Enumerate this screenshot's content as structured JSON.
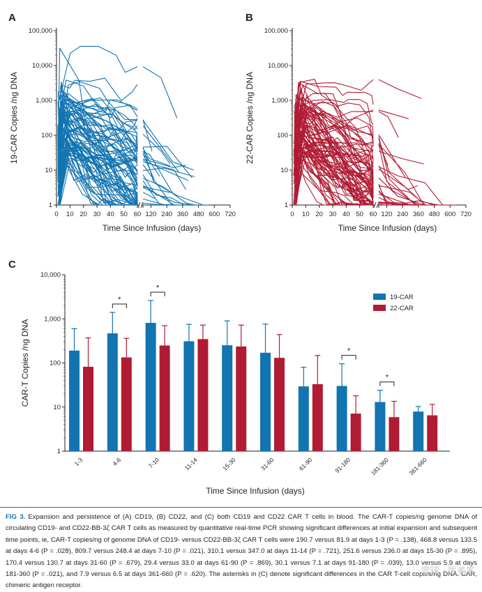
{
  "colors": {
    "cd19": "#1274b0",
    "cd22": "#b01c34",
    "axis": "#231f20"
  },
  "chart_data": [
    {
      "type": "line",
      "panel": "A",
      "ylabel": "19-CAR Copies /ng DNA",
      "xlabel": "Time Since Infusion (days)",
      "yscale": "log",
      "ylim": [
        1,
        100000
      ],
      "ytick_labels": [
        "1",
        "10",
        "100",
        "1,000",
        "10,000",
        "100,000"
      ],
      "x_ticks_left": [
        "0",
        "10",
        "20",
        "30",
        "40",
        "50",
        "60"
      ],
      "x_ticks_right": [
        "120",
        "240",
        "360",
        "480",
        "600",
        "720"
      ],
      "break_label": "60",
      "n_patient_traces": 90
    },
    {
      "type": "line",
      "panel": "B",
      "ylabel": "22-CAR Copies /ng DNA",
      "xlabel": "Time Since Infusion (days)",
      "yscale": "log",
      "ylim": [
        1,
        100000
      ],
      "ytick_labels": [
        "1",
        "10",
        "100",
        "1,000",
        "10,000",
        "100,000"
      ],
      "x_ticks_left": [
        "0",
        "10",
        "20",
        "30",
        "40",
        "50",
        "60"
      ],
      "x_ticks_right": [
        "120",
        "240",
        "360",
        "480",
        "600",
        "720"
      ],
      "break_label": "60",
      "n_patient_traces": 90
    },
    {
      "type": "bar",
      "panel": "C",
      "ylabel": "CAR-T Copies /ng DNA",
      "xlabel": "Time Since Infusion (days)",
      "yscale": "log",
      "ylim": [
        1,
        10000
      ],
      "ytick_labels": [
        "1",
        "10",
        "100",
        "1,000",
        "10,000"
      ],
      "categories": [
        "1-3",
        "4-6",
        "7-10",
        "11-14",
        "15-30",
        "31-60",
        "61-90",
        "91-180",
        "181-360",
        "361-660"
      ],
      "series": [
        {
          "name": "19-CAR",
          "values": [
            190.7,
            468.8,
            809.7,
            310.1,
            251.6,
            170.4,
            29.4,
            30.1,
            13.0,
            7.9
          ],
          "error_upper": [
            600,
            1400,
            2600,
            750,
            900,
            760,
            80,
            96,
            24,
            10.3
          ]
        },
        {
          "name": "22-CAR",
          "values": [
            81.9,
            133.5,
            248.4,
            347.0,
            236.0,
            130.7,
            33.0,
            7.1,
            5.9,
            6.5
          ],
          "error_upper": [
            370,
            360,
            700,
            720,
            720,
            440,
            148,
            18,
            13.5,
            11.5
          ]
        }
      ],
      "significance": [
        {
          "pair": "4-6",
          "label": "*"
        },
        {
          "pair": "7-10",
          "label": "*"
        },
        {
          "pair": "91-180",
          "label": "*"
        },
        {
          "pair": "181-360",
          "label": "*"
        }
      ],
      "legend_position": "top-right"
    }
  ],
  "caption": {
    "label": "FIG 3.",
    "text": "Expansion and persistence of (A) CD19, (B) CD22, and (C) both CD19 and CD22 CAR T cells in blood. The CAR-T copies/ng genome DNA of circulating CD19- and CD22-BB-3ζ CAR T cells as measured by quantitative real-time PCR showing significant differences at initial expansion and subsequent time points, ie, CAR-T copies/ng of genome DNA of CD19- versus CD22-BB-3ζ CAR T cells were 190.7 versus 81.9 at days 1-3 (P = .138), 468.8 versus 133.5 at days 4-6 (P = .028), 809.7 versus 248.4 at days 7-10 (P = .021), 310.1 versus 347.0 at days 11-14 (P = .721), 251.6 versus 236.0 at days 15-30 (P = .895), 170.4 versus 130.7 at days 31-60 (P = .679), 29.4 versus 33.0 at days 61-90 (P = .869), 30.1 versus 7.1 at days 91-180 (P = .039), 13.0 versus 5.9 at days 181-360 (P = .021), and 7.9 versus 6.5 at days 361-660 (P = .620). The asterisks in (C) denote significant differences in the CAR T-cell copies/ng DNA. CAR, chimeric antigen receptor."
  },
  "watermark": "雪球 · 医美客"
}
